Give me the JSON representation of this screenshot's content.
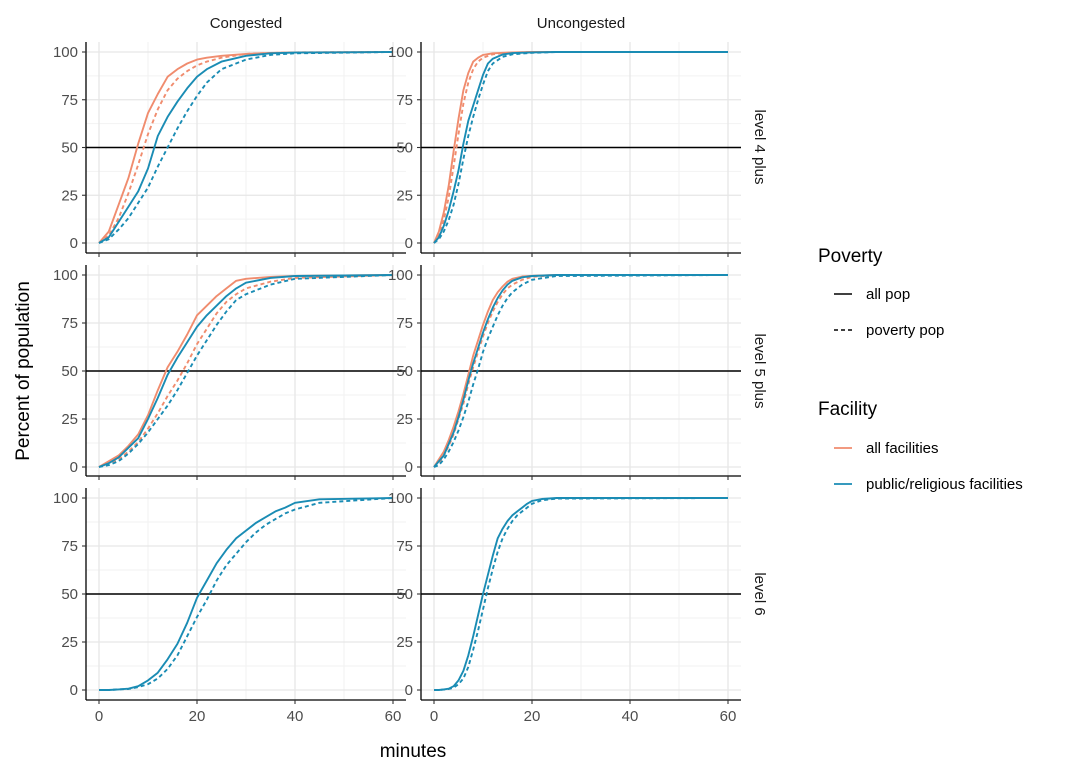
{
  "chart_data": {
    "type": "line",
    "xlabel": "minutes",
    "ylabel": "Percent of population",
    "xlim": [
      0,
      60
    ],
    "ylim": [
      0,
      100
    ],
    "x_ticks": [
      "0",
      "20",
      "40",
      "60"
    ],
    "y_ticks": [
      "0",
      "25",
      "50",
      "75",
      "100"
    ],
    "reference_line_y": 50,
    "grid": true,
    "legend_placement": "right",
    "columns": [
      "Congested",
      "Uncongested"
    ],
    "rows": [
      "level 4 plus",
      "level 5 plus",
      "level 6"
    ],
    "legends": {
      "poverty": {
        "title": "Poverty",
        "items": [
          {
            "label": "all pop",
            "linetype": "solid"
          },
          {
            "label": "poverty pop",
            "linetype": "dashed"
          }
        ]
      },
      "facility": {
        "title": "Facility",
        "items": [
          {
            "label": "all facilities",
            "color": "#F08C6E"
          },
          {
            "label": "public/religious facilities",
            "color": "#1A8CB4"
          }
        ]
      }
    },
    "panels": [
      {
        "column": "Congested",
        "row": "level 4 plus",
        "series": [
          {
            "facility": "all facilities",
            "poverty": "all pop",
            "x": [
              0,
              2,
              4,
              6,
              8,
              10,
              12,
              14,
              16,
              18,
              20,
              22,
              25,
              30,
              35,
              40,
              60
            ],
            "y": [
              0,
              6,
              20,
              34,
              52,
              68,
              78,
              87,
              91,
              94,
              96,
              97,
              98,
              99,
              99.5,
              99.8,
              100
            ]
          },
          {
            "facility": "all facilities",
            "poverty": "poverty pop",
            "x": [
              0,
              2,
              4,
              6,
              8,
              10,
              12,
              14,
              16,
              18,
              20,
              22,
              25,
              30,
              35,
              40,
              60
            ],
            "y": [
              0,
              4,
              13,
              26,
              41,
              57,
              70,
              80,
              86,
              90,
              93,
              95,
              97,
              99,
              99.5,
              99.8,
              100
            ]
          },
          {
            "facility": "public/religious facilities",
            "poverty": "all pop",
            "x": [
              0,
              2,
              4,
              6,
              8,
              10,
              12,
              14,
              16,
              18,
              20,
              22,
              25,
              30,
              35,
              40,
              60
            ],
            "y": [
              0,
              3,
              11,
              19,
              27,
              39,
              56,
              66,
              74,
              81,
              87,
              91,
              95,
              98,
              99.3,
              99.7,
              100
            ]
          },
          {
            "facility": "public/religious facilities",
            "poverty": "poverty pop",
            "x": [
              0,
              2,
              4,
              6,
              8,
              10,
              12,
              14,
              16,
              18,
              20,
              22,
              25,
              30,
              35,
              40,
              60
            ],
            "y": [
              0,
              2,
              7,
              13,
              21,
              29,
              40,
              50,
              60,
              69,
              77,
              84,
              91,
              96,
              98.5,
              99.3,
              100
            ]
          }
        ]
      },
      {
        "column": "Uncongested",
        "row": "level 4 plus",
        "series": [
          {
            "facility": "all facilities",
            "poverty": "all pop",
            "x": [
              0,
              1,
              2,
              3,
              4,
              5,
              6,
              7,
              8,
              9,
              10,
              12,
              14,
              16,
              20,
              25,
              60
            ],
            "y": [
              0,
              6,
              16,
              30,
              48,
              65,
              80,
              89,
              95,
              97,
              98.5,
              99.3,
              99.6,
              99.8,
              100,
              100,
              100
            ]
          },
          {
            "facility": "all facilities",
            "poverty": "poverty pop",
            "x": [
              0,
              1,
              2,
              3,
              4,
              5,
              6,
              7,
              8,
              9,
              10,
              12,
              14,
              16,
              20,
              25,
              60
            ],
            "y": [
              0,
              4,
              12,
              24,
              40,
              57,
              73,
              84,
              91,
              95,
              97,
              98.8,
              99.4,
              99.7,
              100,
              100,
              100
            ]
          },
          {
            "facility": "public/religious facilities",
            "poverty": "all pop",
            "x": [
              0,
              1,
              2,
              3,
              4,
              5,
              6,
              7,
              8,
              9,
              10,
              11,
              12,
              14,
              16,
              20,
              25,
              60
            ],
            "y": [
              0,
              3,
              9,
              17,
              27,
              38,
              52,
              64,
              72,
              80,
              88,
              94,
              96.5,
              98.7,
              99.4,
              99.8,
              100,
              100
            ]
          },
          {
            "facility": "public/religious facilities",
            "poverty": "poverty pop",
            "x": [
              0,
              1,
              2,
              3,
              4,
              5,
              6,
              7,
              8,
              9,
              10,
              11,
              12,
              14,
              16,
              20,
              25,
              60
            ],
            "y": [
              0,
              2,
              6,
              12,
              20,
              31,
              44,
              56,
              66,
              75,
              83,
              90,
              94,
              97.5,
              98.8,
              99.6,
              100,
              100
            ]
          }
        ]
      },
      {
        "column": "Congested",
        "row": "level 5 plus",
        "series": [
          {
            "facility": "all facilities",
            "poverty": "all pop",
            "x": [
              0,
              2,
              4,
              6,
              8,
              10,
              12,
              14,
              16,
              18,
              20,
              22,
              24,
              26,
              28,
              30,
              35,
              40,
              60
            ],
            "y": [
              0,
              3,
              6,
              11,
              17,
              27,
              40,
              52,
              60,
              69,
              79,
              84,
              89,
              93,
              97,
              98,
              99,
              99.5,
              100
            ]
          },
          {
            "facility": "all facilities",
            "poverty": "poverty pop",
            "x": [
              0,
              2,
              4,
              6,
              8,
              10,
              12,
              14,
              16,
              18,
              20,
              22,
              24,
              26,
              28,
              30,
              35,
              40,
              60
            ],
            "y": [
              0,
              2,
              4,
              8,
              13,
              20,
              28,
              37,
              45,
              54,
              64,
              72,
              80,
              86,
              90,
              93,
              96.5,
              98.5,
              100
            ]
          },
          {
            "facility": "public/religious facilities",
            "poverty": "all pop",
            "x": [
              0,
              2,
              4,
              6,
              8,
              10,
              12,
              14,
              16,
              18,
              20,
              22,
              24,
              26,
              28,
              30,
              35,
              40,
              60
            ],
            "y": [
              0,
              2,
              5,
              10,
              15,
              25,
              36,
              48,
              57,
              65,
              73,
              79,
              84,
              89,
              93,
              96,
              98.5,
              99.5,
              100
            ]
          },
          {
            "facility": "public/religious facilities",
            "poverty": "poverty pop",
            "x": [
              0,
              2,
              4,
              6,
              8,
              10,
              12,
              14,
              16,
              18,
              20,
              22,
              24,
              26,
              28,
              30,
              35,
              40,
              60
            ],
            "y": [
              0,
              1,
              3,
              7,
              12,
              18,
              25,
              32,
              40,
              49,
              58,
              66,
              74,
              81,
              87,
              90,
              95,
              98,
              100
            ]
          }
        ]
      },
      {
        "column": "Uncongested",
        "row": "level 5 plus",
        "series": [
          {
            "facility": "all facilities",
            "poverty": "all pop",
            "x": [
              0,
              1,
              2,
              3,
              4,
              5,
              6,
              7,
              8,
              9,
              10,
              11,
              12,
              13,
              14,
              15,
              16,
              18,
              20,
              25,
              60
            ],
            "y": [
              0,
              4,
              8,
              14,
              21,
              29,
              38,
              48,
              58,
              66,
              74,
              81,
              87,
              91,
              94,
              96.5,
              98,
              99.2,
              99.6,
              100,
              100
            ]
          },
          {
            "facility": "all facilities",
            "poverty": "poverty pop",
            "x": [
              0,
              1,
              2,
              3,
              4,
              5,
              6,
              7,
              8,
              9,
              10,
              11,
              12,
              13,
              14,
              15,
              16,
              18,
              20,
              25,
              60
            ],
            "y": [
              0,
              2,
              6,
              11,
              17,
              25,
              33,
              43,
              52,
              60,
              68,
              75,
              81,
              86,
              90,
              93,
              95,
              97.5,
              99,
              100,
              100
            ]
          },
          {
            "facility": "public/religious facilities",
            "poverty": "all pop",
            "x": [
              0,
              1,
              2,
              3,
              4,
              5,
              6,
              7,
              8,
              9,
              10,
              11,
              12,
              13,
              14,
              15,
              16,
              18,
              20,
              25,
              60
            ],
            "y": [
              0,
              3,
              6,
              12,
              18,
              26,
              35,
              45,
              54,
              62,
              70,
              77,
              83,
              88,
              92,
              95,
              97,
              98.8,
              99.5,
              100,
              100
            ]
          },
          {
            "facility": "public/religious facilities",
            "poverty": "poverty pop",
            "x": [
              0,
              1,
              2,
              3,
              4,
              5,
              6,
              7,
              8,
              9,
              10,
              11,
              12,
              13,
              14,
              15,
              16,
              18,
              20,
              25,
              60
            ],
            "y": [
              0,
              1,
              4,
              8,
              13,
              19,
              26,
              34,
              43,
              51,
              60,
              67,
              73,
              79,
              84,
              88,
              91,
              95,
              97.5,
              99.5,
              100
            ]
          }
        ]
      },
      {
        "column": "Congested",
        "row": "level 6",
        "series": [
          {
            "facility": "public/religious facilities",
            "poverty": "all pop",
            "x": [
              0,
              2,
              4,
              6,
              8,
              10,
              12,
              14,
              16,
              18,
              20,
              22,
              24,
              26,
              28,
              30,
              32,
              34,
              36,
              38,
              40,
              45,
              60
            ],
            "y": [
              0,
              0,
              0.3,
              0.7,
              2,
              5,
              9,
              16,
              24,
              35,
              48,
              57,
              66,
              73,
              79,
              83,
              87,
              90,
              93,
              95,
              97.5,
              99.3,
              100
            ]
          },
          {
            "facility": "public/religious facilities",
            "poverty": "poverty pop",
            "x": [
              0,
              2,
              4,
              6,
              8,
              10,
              12,
              14,
              16,
              18,
              20,
              22,
              24,
              26,
              28,
              30,
              32,
              34,
              36,
              38,
              40,
              45,
              60
            ],
            "y": [
              0,
              0,
              0.3,
              0.5,
              1.5,
              3,
              6,
              11,
              18,
              28,
              38,
              47,
              57,
              65,
              71,
              77,
              82,
              86,
              89,
              92,
              94,
              97.5,
              100
            ]
          }
        ]
      },
      {
        "column": "Uncongested",
        "row": "level 6",
        "series": [
          {
            "facility": "public/religious facilities",
            "poverty": "all pop",
            "x": [
              0,
              1,
              2,
              3,
              4,
              5,
              6,
              7,
              8,
              9,
              10,
              11,
              12,
              13,
              14,
              15,
              16,
              17,
              18,
              19,
              20,
              22,
              25,
              60
            ],
            "y": [
              0,
              0,
              0.3,
              0.7,
              2,
              5,
              10,
              18,
              28,
              39,
              50,
              60,
              70,
              79,
              84,
              88,
              91,
              93,
              95,
              97,
              98.5,
              99.5,
              100,
              100
            ]
          },
          {
            "facility": "public/religious facilities",
            "poverty": "poverty pop",
            "x": [
              0,
              1,
              2,
              3,
              4,
              5,
              6,
              7,
              8,
              9,
              10,
              11,
              12,
              13,
              14,
              15,
              16,
              17,
              18,
              19,
              20,
              22,
              25,
              60
            ],
            "y": [
              0,
              0,
              0.2,
              0.5,
              1.2,
              3,
              6,
              12,
              21,
              31,
              42,
              53,
              63,
              72,
              79,
              84,
              88,
              91,
              93,
              95,
              97,
              98.8,
              99.7,
              100
            ]
          }
        ]
      }
    ]
  }
}
